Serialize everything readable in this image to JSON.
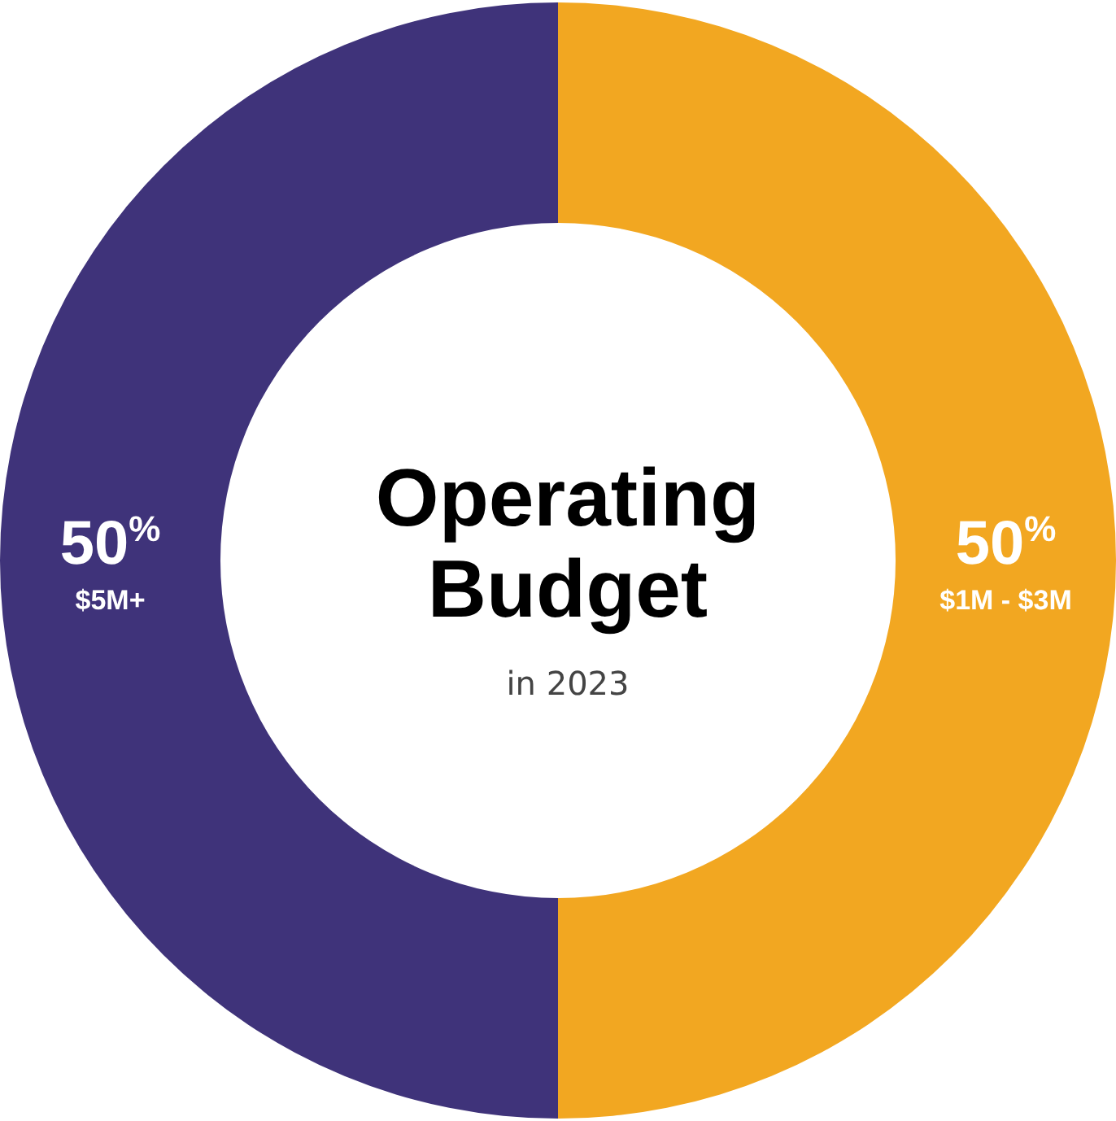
{
  "chart_data": {
    "type": "donut",
    "title": "Operating Budget",
    "subtitle": "in 2023",
    "categories": [
      "$1M - $3M",
      "$5M+"
    ],
    "values": [
      50,
      50
    ],
    "colors": [
      "#f2a721",
      "#3f337a"
    ],
    "value_labels": [
      "50%",
      "50%"
    ],
    "legend": false
  }
}
